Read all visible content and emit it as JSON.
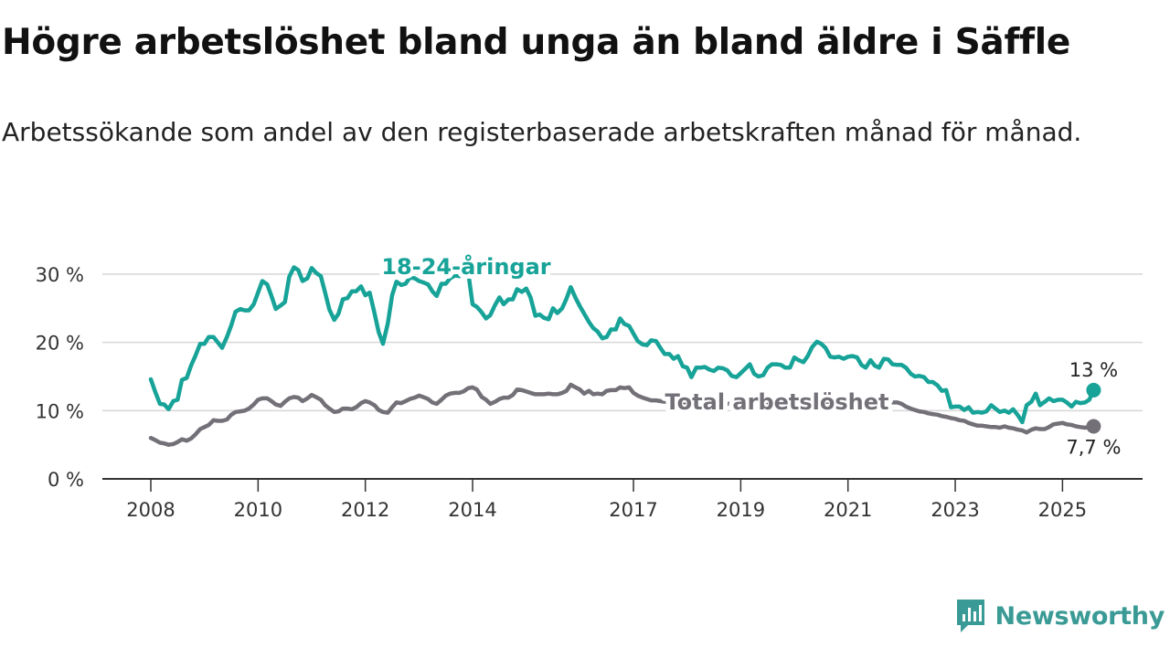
{
  "title": "Högre arbetslöshet bland unga än bland äldre i Säffle",
  "subtitle": "Arbetssökande som andel av den registerbaserade arbetskraften månad för månad.",
  "brand": {
    "name": "Newsworthy",
    "icon": "newsworthy-logo-icon",
    "color": "#3a9a95"
  },
  "chart_data": {
    "type": "line",
    "title": "",
    "xlabel": "",
    "ylabel": "",
    "xlim": [
      2008,
      2026.5
    ],
    "ylim": [
      0,
      32
    ],
    "x_ticks": [
      2008,
      2010,
      2012,
      2014,
      2017,
      2019,
      2021,
      2023,
      2025
    ],
    "y_ticks": [
      {
        "value": 0,
        "label": "0 %"
      },
      {
        "value": 10,
        "label": "10 %"
      },
      {
        "value": 20,
        "label": "20 %"
      },
      {
        "value": 30,
        "label": "30 %"
      }
    ],
    "grid": true,
    "series": [
      {
        "name": "18-24-åringar",
        "color": "#17a398",
        "end_label": "13 %",
        "x": [
          2008.0,
          2008.08,
          2008.17,
          2008.25,
          2008.33,
          2008.42,
          2008.5,
          2008.58,
          2008.67,
          2008.75,
          2008.83,
          2008.92,
          2009.0,
          2009.08,
          2009.17,
          2009.25,
          2009.33,
          2009.42,
          2009.5,
          2009.58,
          2009.67,
          2009.75,
          2009.83,
          2009.92,
          2010.0,
          2010.08,
          2010.17,
          2010.25,
          2010.33,
          2010.42,
          2010.5,
          2010.58,
          2010.67,
          2010.75,
          2010.83,
          2010.92,
          2011.0,
          2011.08,
          2011.17,
          2011.25,
          2011.33,
          2011.42,
          2011.5,
          2011.58,
          2011.67,
          2011.75,
          2011.83,
          2011.92,
          2012.0,
          2012.08,
          2012.17,
          2012.25,
          2012.33,
          2012.42,
          2012.5,
          2012.58,
          2012.67,
          2012.75,
          2012.83,
          2012.92,
          2013.0,
          2013.08,
          2013.17,
          2013.25,
          2013.33,
          2013.42,
          2013.5,
          2013.58,
          2013.67,
          2013.75,
          2013.83,
          2013.92,
          2014.0,
          2014.08,
          2014.17,
          2014.25,
          2014.33,
          2014.42,
          2014.5,
          2014.58,
          2014.67,
          2014.75,
          2014.83,
          2014.92,
          2015.0,
          2015.08,
          2015.17,
          2015.25,
          2015.33,
          2015.42,
          2015.5,
          2015.58,
          2015.67,
          2015.75,
          2015.83,
          2015.92,
          2016.0,
          2016.08,
          2016.17,
          2016.25,
          2016.33,
          2016.42,
          2016.5,
          2016.58,
          2016.67,
          2016.75,
          2016.83,
          2016.92,
          2017.0,
          2017.08,
          2017.17,
          2017.25,
          2017.33,
          2017.42,
          2017.5,
          2017.58,
          2017.67,
          2017.75,
          2017.83,
          2017.92,
          2018.0,
          2018.08,
          2018.17,
          2018.25,
          2018.33,
          2018.42,
          2018.5,
          2018.58,
          2018.67,
          2018.75,
          2018.83,
          2018.92,
          2019.0,
          2019.08,
          2019.17,
          2019.25,
          2019.33,
          2019.42,
          2019.5,
          2019.58,
          2019.67,
          2019.75,
          2019.83,
          2019.92,
          2020.0,
          2020.08,
          2020.17,
          2020.25,
          2020.33,
          2020.42,
          2020.5,
          2020.58,
          2020.67,
          2020.75,
          2020.83,
          2020.92,
          2021.0,
          2021.08,
          2021.17,
          2021.25,
          2021.33,
          2021.42,
          2021.5,
          2021.58,
          2021.67,
          2021.75,
          2021.83,
          2021.92,
          2022.0,
          2022.08,
          2022.17,
          2022.25,
          2022.33,
          2022.42,
          2022.5,
          2022.58,
          2022.67,
          2022.75,
          2022.83,
          2022.92,
          2023.0,
          2023.08,
          2023.17,
          2023.25,
          2023.33,
          2023.42,
          2023.5,
          2023.58,
          2023.67,
          2023.75,
          2023.83,
          2023.92,
          2024.0,
          2024.08,
          2024.17,
          2024.25,
          2024.33,
          2024.42,
          2024.5,
          2024.58,
          2024.67,
          2024.75,
          2024.83,
          2024.92,
          2025.0,
          2025.08,
          2025.17,
          2025.25,
          2025.33,
          2025.42,
          2025.5,
          2025.58
        ],
        "values": [
          14.6,
          12.8,
          11.0,
          10.9,
          10.2,
          11.4,
          11.6,
          14.5,
          14.8,
          16.6,
          18.0,
          19.8,
          19.8,
          20.8,
          20.8,
          20.0,
          19.2,
          20.8,
          22.5,
          24.5,
          24.9,
          24.7,
          24.7,
          25.6,
          27.3,
          29.0,
          28.5,
          26.8,
          24.9,
          25.4,
          25.9,
          29.6,
          31.0,
          30.6,
          29.0,
          29.4,
          30.9,
          30.2,
          29.7,
          27.3,
          24.8,
          23.3,
          24.2,
          26.3,
          26.5,
          27.5,
          27.5,
          28.2,
          26.9,
          27.3,
          24.3,
          21.5,
          19.8,
          22.8,
          26.9,
          28.9,
          28.4,
          28.6,
          29.5,
          29.4,
          29.0,
          28.8,
          28.5,
          27.5,
          26.8,
          28.6,
          28.6,
          29.4,
          29.8,
          29.7,
          29.9,
          30.2,
          25.6,
          25.2,
          24.4,
          23.5,
          24.0,
          25.5,
          26.6,
          25.6,
          26.3,
          26.3,
          27.8,
          27.4,
          27.9,
          26.6,
          23.9,
          24.1,
          23.6,
          23.4,
          25.0,
          24.3,
          25.0,
          26.4,
          28.1,
          26.5,
          25.3,
          24.2,
          23.0,
          22.1,
          21.6,
          20.6,
          20.8,
          21.9,
          21.9,
          23.5,
          22.7,
          22.4,
          21.3,
          20.2,
          19.7,
          19.6,
          20.3,
          20.2,
          19.2,
          18.3,
          18.3,
          17.6,
          18.0,
          16.5,
          16.3,
          14.9,
          16.3,
          16.3,
          16.4,
          16.0,
          15.8,
          16.3,
          16.2,
          15.9,
          15.1,
          14.9,
          15.5,
          16.1,
          16.8,
          15.4,
          15.0,
          15.2,
          16.3,
          16.8,
          16.8,
          16.7,
          16.3,
          16.3,
          17.8,
          17.4,
          17.1,
          18.0,
          19.3,
          20.1,
          19.8,
          19.2,
          17.9,
          17.8,
          17.9,
          17.6,
          17.9,
          18.0,
          17.8,
          16.7,
          16.3,
          17.4,
          16.6,
          16.3,
          17.6,
          17.5,
          16.8,
          16.7,
          16.7,
          16.3,
          15.4,
          15.0,
          15.1,
          14.9,
          14.2,
          14.2,
          13.7,
          12.9,
          13.0,
          10.5,
          10.6,
          10.6,
          10.1,
          10.5,
          9.7,
          9.8,
          9.7,
          9.9,
          10.8,
          10.3,
          9.8,
          10.0,
          9.7,
          10.2,
          9.3,
          8.3,
          10.8,
          11.3,
          12.5,
          10.8,
          11.3,
          11.8,
          11.4,
          11.6,
          11.6,
          11.2,
          10.6,
          11.3,
          11.1,
          11.2,
          11.6,
          13.0
        ]
      },
      {
        "name": "Total arbetslöshet",
        "color": "#737078",
        "end_label": "7,7 %",
        "x": [
          2008.0,
          2008.08,
          2008.17,
          2008.25,
          2008.33,
          2008.42,
          2008.5,
          2008.58,
          2008.67,
          2008.75,
          2008.83,
          2008.92,
          2009.0,
          2009.08,
          2009.17,
          2009.25,
          2009.33,
          2009.42,
          2009.5,
          2009.58,
          2009.67,
          2009.75,
          2009.83,
          2009.92,
          2010.0,
          2010.08,
          2010.17,
          2010.25,
          2010.33,
          2010.42,
          2010.5,
          2010.58,
          2010.67,
          2010.75,
          2010.83,
          2010.92,
          2011.0,
          2011.08,
          2011.17,
          2011.25,
          2011.33,
          2011.42,
          2011.5,
          2011.58,
          2011.67,
          2011.75,
          2011.83,
          2011.92,
          2012.0,
          2012.08,
          2012.17,
          2012.25,
          2012.33,
          2012.42,
          2012.5,
          2012.58,
          2012.67,
          2012.75,
          2012.83,
          2012.92,
          2013.0,
          2013.08,
          2013.17,
          2013.25,
          2013.33,
          2013.42,
          2013.5,
          2013.58,
          2013.67,
          2013.75,
          2013.83,
          2013.92,
          2014.0,
          2014.08,
          2014.17,
          2014.25,
          2014.33,
          2014.42,
          2014.5,
          2014.58,
          2014.67,
          2014.75,
          2014.83,
          2014.92,
          2015.0,
          2015.08,
          2015.17,
          2015.25,
          2015.33,
          2015.42,
          2015.5,
          2015.58,
          2015.67,
          2015.75,
          2015.83,
          2015.92,
          2016.0,
          2016.08,
          2016.17,
          2016.25,
          2016.33,
          2016.42,
          2016.5,
          2016.58,
          2016.67,
          2016.75,
          2016.83,
          2016.92,
          2017.0,
          2017.08,
          2017.17,
          2017.25,
          2017.33,
          2017.42,
          2017.5,
          2017.58,
          2017.67,
          2017.75,
          2017.83,
          2017.92,
          2018.0,
          2018.08,
          2018.17,
          2018.25,
          2018.33,
          2018.42,
          2018.5,
          2018.58,
          2018.67,
          2018.75,
          2018.83,
          2018.92,
          2019.0,
          2019.08,
          2019.17,
          2019.25,
          2019.33,
          2019.42,
          2019.5,
          2019.58,
          2019.67,
          2019.75,
          2019.83,
          2019.92,
          2020.0,
          2020.08,
          2020.17,
          2020.25,
          2020.33,
          2020.42,
          2020.5,
          2020.58,
          2020.67,
          2020.75,
          2020.83,
          2020.92,
          2021.0,
          2021.08,
          2021.17,
          2021.25,
          2021.33,
          2021.42,
          2021.5,
          2021.58,
          2021.67,
          2021.75,
          2021.83,
          2021.92,
          2022.0,
          2022.08,
          2022.17,
          2022.25,
          2022.33,
          2022.42,
          2022.5,
          2022.58,
          2022.67,
          2022.75,
          2022.83,
          2022.92,
          2023.0,
          2023.08,
          2023.17,
          2023.25,
          2023.33,
          2023.42,
          2023.5,
          2023.58,
          2023.67,
          2023.75,
          2023.83,
          2023.92,
          2024.0,
          2024.08,
          2024.17,
          2024.25,
          2024.33,
          2024.42,
          2024.5,
          2024.58,
          2024.67,
          2024.75,
          2024.83,
          2024.92,
          2025.0,
          2025.08,
          2025.17,
          2025.25,
          2025.33,
          2025.42,
          2025.5,
          2025.58
        ],
        "values": [
          6.0,
          5.7,
          5.3,
          5.2,
          5.0,
          5.1,
          5.4,
          5.8,
          5.6,
          5.9,
          6.5,
          7.3,
          7.6,
          7.9,
          8.6,
          8.5,
          8.5,
          8.7,
          9.4,
          9.8,
          9.9,
          10.0,
          10.3,
          10.9,
          11.6,
          11.8,
          11.8,
          11.4,
          10.9,
          10.7,
          11.3,
          11.8,
          12.0,
          11.9,
          11.4,
          11.8,
          12.3,
          12.0,
          11.6,
          10.8,
          10.3,
          9.8,
          9.9,
          10.3,
          10.3,
          10.2,
          10.5,
          11.1,
          11.4,
          11.2,
          10.8,
          10.1,
          9.8,
          9.7,
          10.5,
          11.2,
          11.1,
          11.4,
          11.7,
          11.9,
          12.2,
          12.0,
          11.7,
          11.2,
          11.0,
          11.6,
          12.2,
          12.5,
          12.6,
          12.6,
          12.8,
          13.3,
          13.4,
          13.1,
          12.0,
          11.6,
          11.0,
          11.3,
          11.7,
          11.9,
          11.9,
          12.3,
          13.1,
          13.0,
          12.8,
          12.6,
          12.4,
          12.4,
          12.4,
          12.5,
          12.4,
          12.4,
          12.6,
          12.9,
          13.8,
          13.4,
          13.1,
          12.5,
          12.9,
          12.4,
          12.5,
          12.4,
          12.9,
          13.0,
          13.0,
          13.4,
          13.3,
          13.4,
          12.6,
          12.2,
          11.9,
          11.7,
          11.5,
          11.5,
          11.4,
          11.3,
          11.3,
          11.2,
          11.2,
          11.1,
          11.1,
          11.0,
          11.0,
          11.0,
          11.0,
          11.0,
          11.0,
          11.0,
          11.0,
          11.0,
          11.0,
          11.0,
          11.0,
          11.0,
          11.0,
          11.0,
          11.0,
          11.0,
          11.0,
          11.0,
          11.0,
          11.0,
          11.1,
          11.1,
          11.1,
          11.2,
          11.2,
          11.2,
          11.3,
          11.3,
          11.3,
          11.3,
          11.3,
          11.3,
          11.3,
          11.2,
          11.2,
          11.2,
          11.2,
          11.2,
          11.2,
          11.2,
          11.2,
          11.2,
          11.2,
          11.2,
          11.2,
          11.2,
          11.0,
          10.6,
          10.3,
          10.1,
          9.9,
          9.8,
          9.6,
          9.5,
          9.4,
          9.2,
          9.1,
          8.9,
          8.8,
          8.6,
          8.5,
          8.2,
          8.0,
          7.8,
          7.8,
          7.7,
          7.6,
          7.6,
          7.5,
          7.7,
          7.5,
          7.4,
          7.2,
          7.1,
          6.8,
          7.2,
          7.4,
          7.3,
          7.3,
          7.6,
          8.0,
          8.1,
          8.2,
          8.0,
          7.9,
          7.7,
          7.6,
          7.5,
          7.6,
          7.7
        ]
      }
    ]
  }
}
